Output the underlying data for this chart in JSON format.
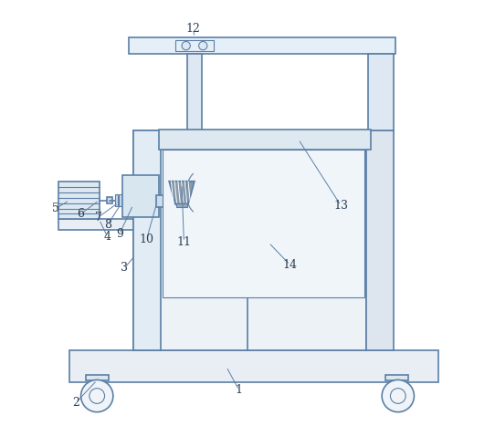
{
  "bg_color": "#ffffff",
  "line_color": "#5b7fa6",
  "line_width": 1.2,
  "thin_line": 0.8,
  "label_fontsize": 9
}
